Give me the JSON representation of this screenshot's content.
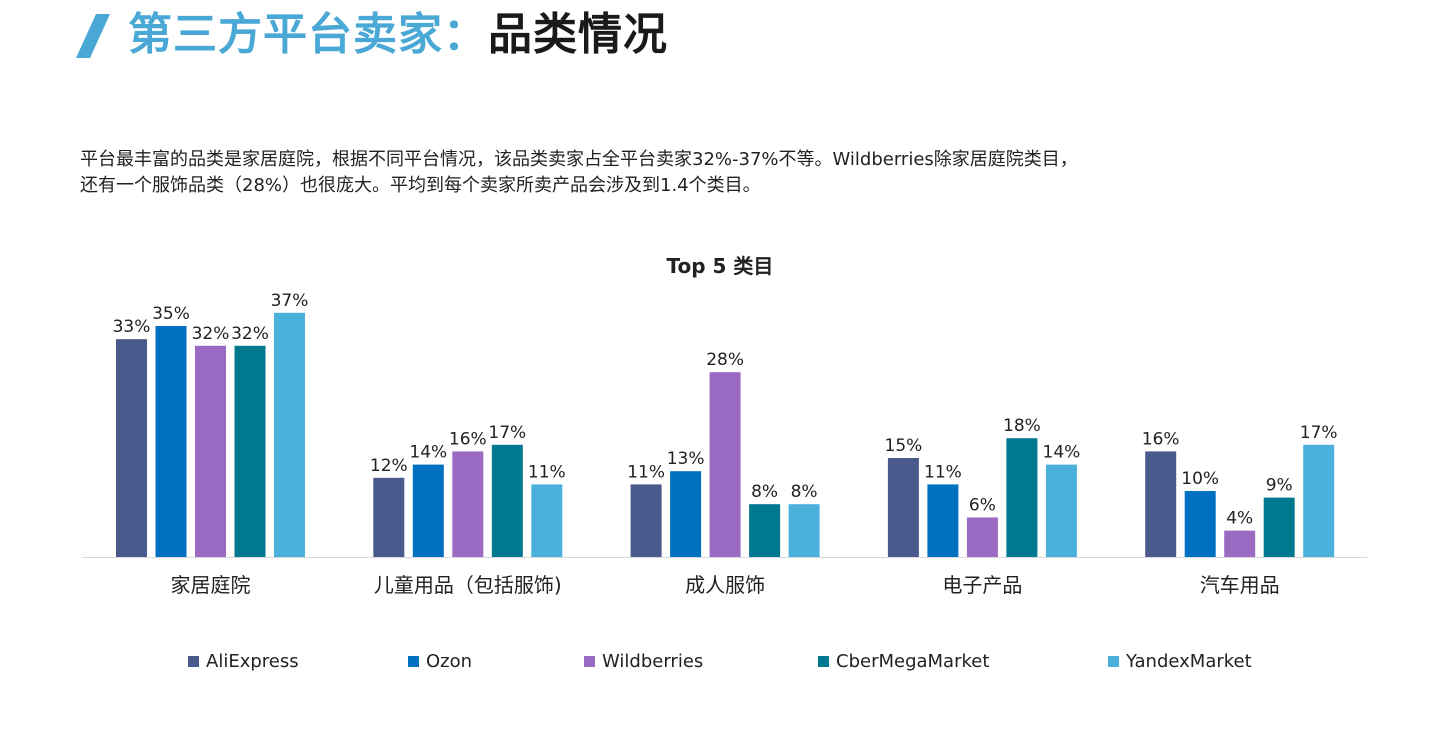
{
  "header": {
    "title_part1": "第三方平台卖家：",
    "title_part2": "品类情况",
    "accent_color": "#4aa8d6"
  },
  "description": {
    "line1": "平台最丰富的品类是家居庭院，根据不同平台情况，该品类卖家占全平台卖家32%-37%不等。Wildberries除家居庭院类目，",
    "line2": "还有一个服饰品类（28%）也很庞大。平均到每个卖家所卖产品会涉及到1.4个类目。"
  },
  "chart_data": {
    "type": "bar",
    "title": "Top 5 类目",
    "categories": [
      "家居庭院",
      "儿童用品（包括服饰)",
      "成人服饰",
      "电子产品",
      "汽车用品"
    ],
    "series": [
      {
        "name": "AliExpress",
        "color": "#4a5a8c",
        "values": [
          33,
          12,
          11,
          15,
          16
        ]
      },
      {
        "name": "Ozon",
        "color": "#0070c0",
        "values": [
          35,
          14,
          13,
          11,
          10
        ]
      },
      {
        "name": "Wildberries",
        "color": "#9b6bc4",
        "values": [
          32,
          16,
          28,
          6,
          4
        ]
      },
      {
        "name": "CberMegaMarket",
        "color": "#00788f",
        "values": [
          32,
          17,
          8,
          18,
          9
        ]
      },
      {
        "name": "YandexMarket",
        "color": "#4ab0dc",
        "values": [
          37,
          11,
          8,
          14,
          17
        ]
      }
    ],
    "value_suffix": "%",
    "ylim": [
      0,
      37
    ],
    "grid": false,
    "legend_position": "bottom"
  }
}
